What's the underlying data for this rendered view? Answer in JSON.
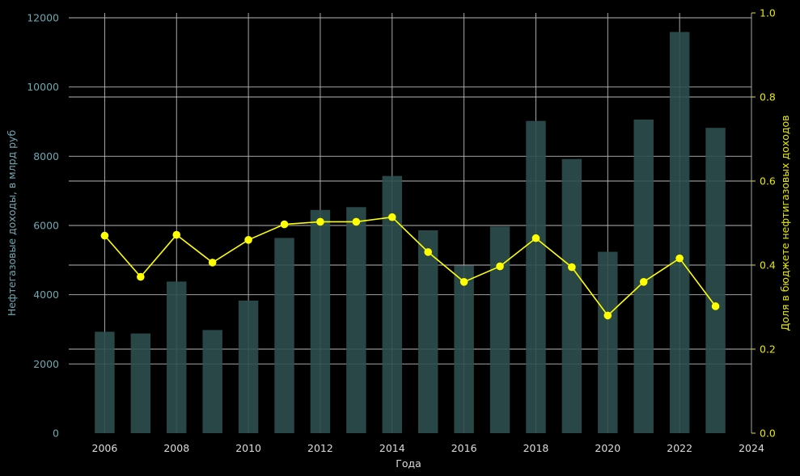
{
  "chart_data": {
    "type": "bar+line",
    "xlabel": "Года",
    "ylabel_left": "Нефтегазовые доходы, в млрд руб",
    "ylabel_right": "Доля в бюджете нефтигазовых доходов",
    "xlim": [
      2005,
      2024
    ],
    "ylim_left": [
      0,
      12000
    ],
    "ylim_right": [
      0,
      1.0
    ],
    "x_ticks": [
      "2006",
      "2008",
      "2010",
      "2012",
      "2014",
      "2016",
      "2018",
      "2020",
      "2022",
      "2024"
    ],
    "y_left_ticks": [
      "0",
      "2000",
      "4000",
      "6000",
      "8000",
      "10000",
      "12000"
    ],
    "y_right_ticks": [
      "0.0",
      "0.2",
      "0.4",
      "0.6",
      "0.8",
      "1.0"
    ],
    "grid": true,
    "years": [
      2006,
      2007,
      2008,
      2009,
      2010,
      2011,
      2012,
      2013,
      2014,
      2015,
      2016,
      2017,
      2018,
      2019,
      2020,
      2021,
      2022,
      2023
    ],
    "series": [
      {
        "axis": "left",
        "kind": "bar",
        "color": "#2f4f4f",
        "values": [
          2930,
          2880,
          4380,
          2980,
          3830,
          5640,
          6450,
          6530,
          7430,
          5860,
          4840,
          5970,
          9020,
          7920,
          5240,
          9060,
          11590,
          8820
        ]
      },
      {
        "axis": "right",
        "kind": "line",
        "color": "#ffff00",
        "values": [
          0.47,
          0.372,
          0.472,
          0.406,
          0.46,
          0.497,
          0.503,
          0.503,
          0.514,
          0.431,
          0.36,
          0.397,
          0.464,
          0.395,
          0.28,
          0.36,
          0.416,
          0.302
        ]
      }
    ]
  }
}
